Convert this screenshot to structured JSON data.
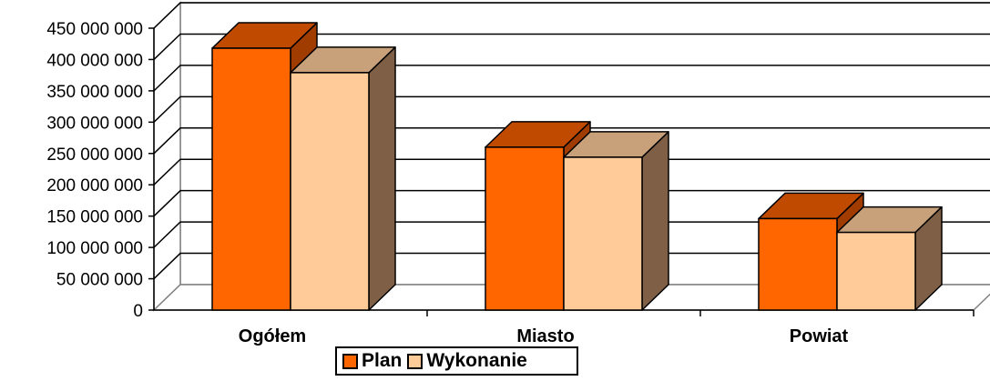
{
  "chart_data": {
    "type": "bar",
    "style": "3d-clustered-column",
    "categories": [
      "Ogółem",
      "Miasto",
      "Powiat"
    ],
    "series": [
      {
        "name": "Plan",
        "values": [
          418000000,
          260000000,
          146000000
        ],
        "color": "#FF6600",
        "top_color": "#C04A00",
        "side_color": "#A03C00"
      },
      {
        "name": "Wykonanie",
        "values": [
          379000000,
          244000000,
          124000000
        ],
        "color": "#FFCC99",
        "top_color": "#C8A07A",
        "side_color": "#7F6046"
      }
    ],
    "ylim": [
      0,
      450000000
    ],
    "ytick_step": 50000000,
    "ytick_labels": [
      "0",
      "50 000 000",
      "100 000 000",
      "150 000 000",
      "200 000 000",
      "250 000 000",
      "300 000 000",
      "350 000 000",
      "400 000 000",
      "450 000 000"
    ],
    "title": "",
    "xlabel": "",
    "ylabel": "",
    "grid": true,
    "legend_position": "bottom"
  }
}
